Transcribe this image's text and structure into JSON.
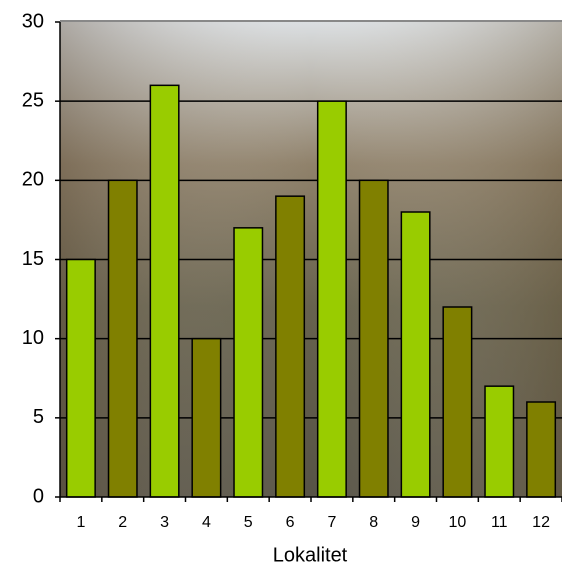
{
  "chart_data": {
    "type": "bar",
    "x_label": "Lokalitet",
    "categories": [
      "1",
      "2",
      "3",
      "4",
      "5",
      "6",
      "7",
      "8",
      "9",
      "10",
      "11",
      "12"
    ],
    "values": [
      15,
      20,
      26,
      10,
      17,
      19,
      25,
      20,
      18,
      12,
      7,
      6
    ],
    "colors": [
      "#99cc00",
      "#808000",
      "#99cc00",
      "#808000",
      "#99cc00",
      "#808000",
      "#99cc00",
      "#808000",
      "#99cc00",
      "#808000",
      "#99cc00",
      "#808000"
    ],
    "ylim": [
      0,
      30
    ],
    "yticks": [
      0,
      5,
      10,
      15,
      20,
      25,
      30
    ],
    "grid": true
  }
}
